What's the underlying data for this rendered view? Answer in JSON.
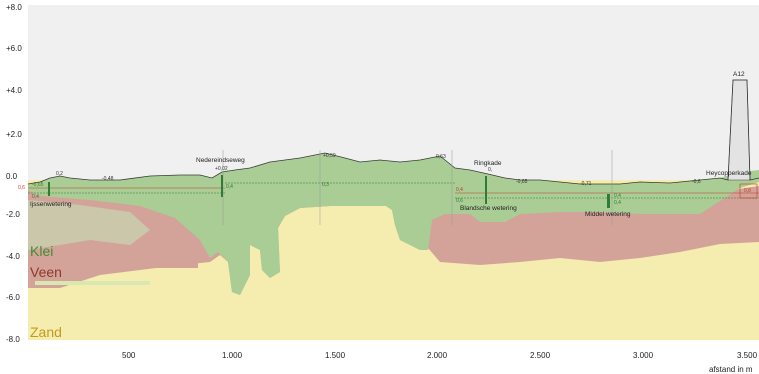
{
  "y_axis": {
    "ticks": [
      "+8.0",
      "+6.0",
      "+4.0",
      "+2.0",
      "0.0",
      "-2.0",
      "-4.0",
      "-6.0",
      "-8.0"
    ]
  },
  "x_axis": {
    "ticks": [
      "500",
      "1.000",
      "1.500",
      "2.000",
      "2.500",
      "3.000",
      "3.500"
    ],
    "label": "afstand in m"
  },
  "legend": {
    "klei": "Klei",
    "veen": "Veen",
    "zand": "Zand"
  },
  "colors": {
    "klei": "#a9cd94",
    "veen": "#d3a39a",
    "zand": "#f5ecaf",
    "surface_line": "#3a3a3a",
    "water_red": "#c0392b",
    "water_green": "#2e7d32",
    "background": "#f0f0f0"
  },
  "features": {
    "ijssenwetering": "Ijssenwetering",
    "nedereindseweg": "Nedereindseweg",
    "ringkade": "Ringkade",
    "blandsche_wetering": "Blandsche wetering",
    "middel_wetering": "Middel wetering",
    "heycopperkade": "Heycopperkade",
    "a12": "A12"
  },
  "elevations": {
    "e1": "0,2",
    "e2": "-0,48",
    "e3": "+0,02",
    "e4": "+0,59",
    "e5": "0,63",
    "e6": "0,",
    "e7": "-0,65",
    "e8": "-0,71",
    "e9": "-0,6"
  },
  "water_levels": {
    "w_left_top": "-0,65",
    "w_left_red": "0,6",
    "w_left_green": "0,4",
    "w_mid1": "0,4",
    "w_mid2": "0,3",
    "w_ring1": "0,4",
    "w_ring2": "0,6",
    "w_right1": "0,4",
    "w_right2": "0,4",
    "w_right3": "0,8"
  }
}
